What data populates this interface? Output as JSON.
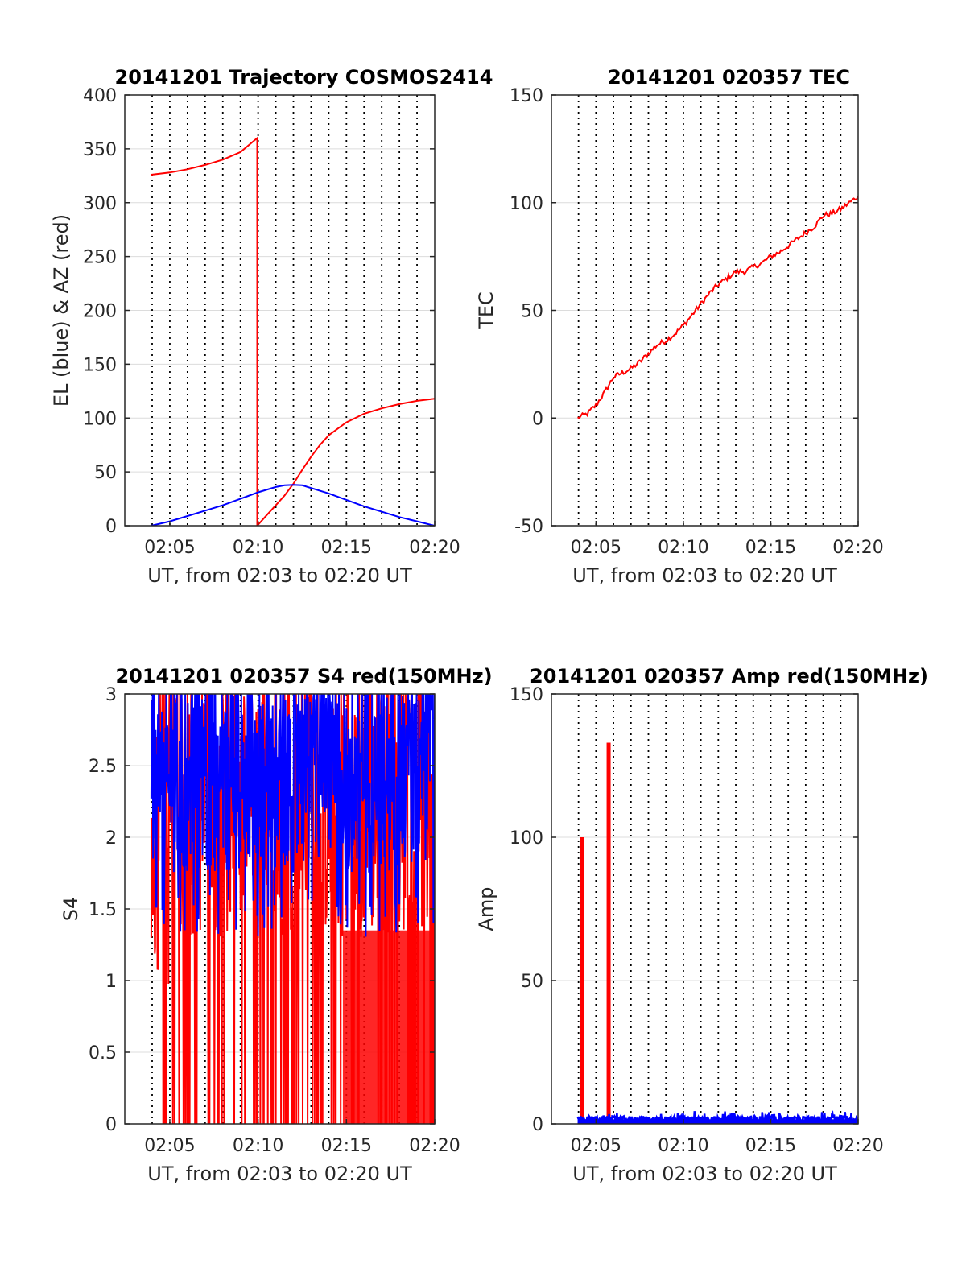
{
  "chart_data": [
    {
      "type": "line",
      "title": "20141201 Trajectory COSMOS2414",
      "xlabel": "UT, from 02:03 to 02:20 UT",
      "ylabel": "EL (blue) & AZ (red)",
      "xlim": [
        2.45,
        20.0
      ],
      "ylim": [
        0,
        400
      ],
      "x_ticks": [
        5,
        10,
        15,
        20
      ],
      "x_tick_labels": [
        "02:05",
        "02:10",
        "02:15",
        "02:20"
      ],
      "y_ticks": [
        0,
        50,
        100,
        150,
        200,
        250,
        300,
        350,
        400
      ],
      "y_tick_labels": [
        "0",
        "50",
        "100",
        "150",
        "200",
        "250",
        "300",
        "350",
        "400"
      ],
      "grid": true,
      "series": [
        {
          "color": "#ff0000",
          "x": [
            3.95,
            5,
            6,
            7,
            8,
            9,
            9.95,
            9.95,
            10.5,
            11,
            11.5,
            12,
            12.5,
            13,
            13.5,
            14,
            15,
            16,
            17,
            18,
            19,
            20
          ],
          "y": [
            326,
            328,
            331,
            335,
            340,
            347,
            360,
            0,
            10,
            19,
            28,
            39,
            52,
            64,
            75,
            84,
            96,
            104,
            109,
            113,
            116,
            118
          ]
        },
        {
          "color": "#0000ff",
          "x": [
            3.95,
            5,
            6,
            7,
            8,
            9,
            10,
            11,
            11.5,
            12,
            12.5,
            13,
            14,
            15,
            16,
            17,
            18,
            19,
            20
          ],
          "y": [
            0,
            4,
            9,
            14,
            19,
            25,
            31,
            36,
            37.5,
            38,
            37.5,
            35,
            30,
            24,
            18,
            13,
            8,
            4,
            0
          ]
        }
      ]
    },
    {
      "type": "line",
      "title": "20141201 020357 TEC",
      "xlabel": "UT, from 02:03 to 02:20 UT",
      "ylabel": "TEC",
      "xlim": [
        2.45,
        20.0
      ],
      "ylim": [
        -50,
        150
      ],
      "x_ticks": [
        5,
        10,
        15,
        20
      ],
      "x_tick_labels": [
        "02:05",
        "02:10",
        "02:15",
        "02:20"
      ],
      "y_ticks": [
        -50,
        0,
        50,
        100,
        150
      ],
      "y_tick_labels": [
        "-50",
        "0",
        "50",
        "100",
        "150"
      ],
      "grid": true,
      "series": [
        {
          "color": "#ff0000",
          "x": [
            3.95,
            4.5,
            5,
            5.5,
            6,
            6.5,
            7,
            7.5,
            8,
            8.5,
            9,
            9.5,
            10,
            10.5,
            11,
            11.5,
            12,
            12.5,
            13,
            13.5,
            14,
            14.5,
            15,
            15.5,
            16,
            16.5,
            17,
            17.5,
            18,
            18.5,
            19,
            19.5,
            20
          ],
          "y": [
            0,
            2,
            6,
            12,
            19,
            21,
            23,
            26,
            30,
            34,
            36,
            39,
            43,
            48,
            53,
            58,
            62,
            65,
            68,
            68,
            70,
            72,
            75,
            77,
            80,
            83,
            86,
            89,
            94,
            95,
            97,
            100,
            103
          ]
        }
      ]
    },
    {
      "type": "line",
      "title": "20141201 020357 S4 red(150MHz)",
      "xlabel": "UT, from 02:03 to 02:20 UT",
      "ylabel": "S4",
      "xlim": [
        2.45,
        20.0
      ],
      "ylim": [
        0,
        3
      ],
      "x_ticks": [
        5,
        10,
        15,
        20
      ],
      "x_tick_labels": [
        "02:05",
        "02:10",
        "02:15",
        "02:20"
      ],
      "y_ticks": [
        0,
        0.5,
        1,
        1.5,
        2,
        2.5,
        3
      ],
      "y_tick_labels": [
        "0",
        "0.5",
        "1",
        "1.5",
        "2",
        "2.5",
        "3"
      ],
      "grid": true,
      "series": [
        {
          "color": "#ff0000",
          "x_range": [
            3.95,
            20.0
          ],
          "y_range": [
            0,
            3
          ],
          "typical_floor": 1.3
        },
        {
          "color": "#0000ff",
          "x_range": [
            3.95,
            20.0
          ],
          "y_range": [
            1.3,
            3
          ],
          "typical_floor": 1.75
        }
      ]
    },
    {
      "type": "line",
      "title": "20141201 020357 Amp red(150MHz)",
      "xlabel": "UT, from 02:03 to 02:20 UT",
      "ylabel": "Amp",
      "xlim": [
        2.45,
        20.0
      ],
      "ylim": [
        0,
        150
      ],
      "x_ticks": [
        5,
        10,
        15,
        20
      ],
      "x_tick_labels": [
        "02:05",
        "02:10",
        "02:15",
        "02:20"
      ],
      "y_ticks": [
        0,
        50,
        100,
        150
      ],
      "y_tick_labels": [
        "0",
        "50",
        "100",
        "150"
      ],
      "grid": true,
      "series": [
        {
          "color": "#ff0000",
          "spikes": [
            {
              "x": 4.2,
              "y": 100
            },
            {
              "x": 5.7,
              "y": 133
            }
          ]
        },
        {
          "color": "#0000ff",
          "x_range": [
            3.95,
            20.0
          ],
          "y_range": [
            0,
            3
          ]
        }
      ]
    }
  ]
}
